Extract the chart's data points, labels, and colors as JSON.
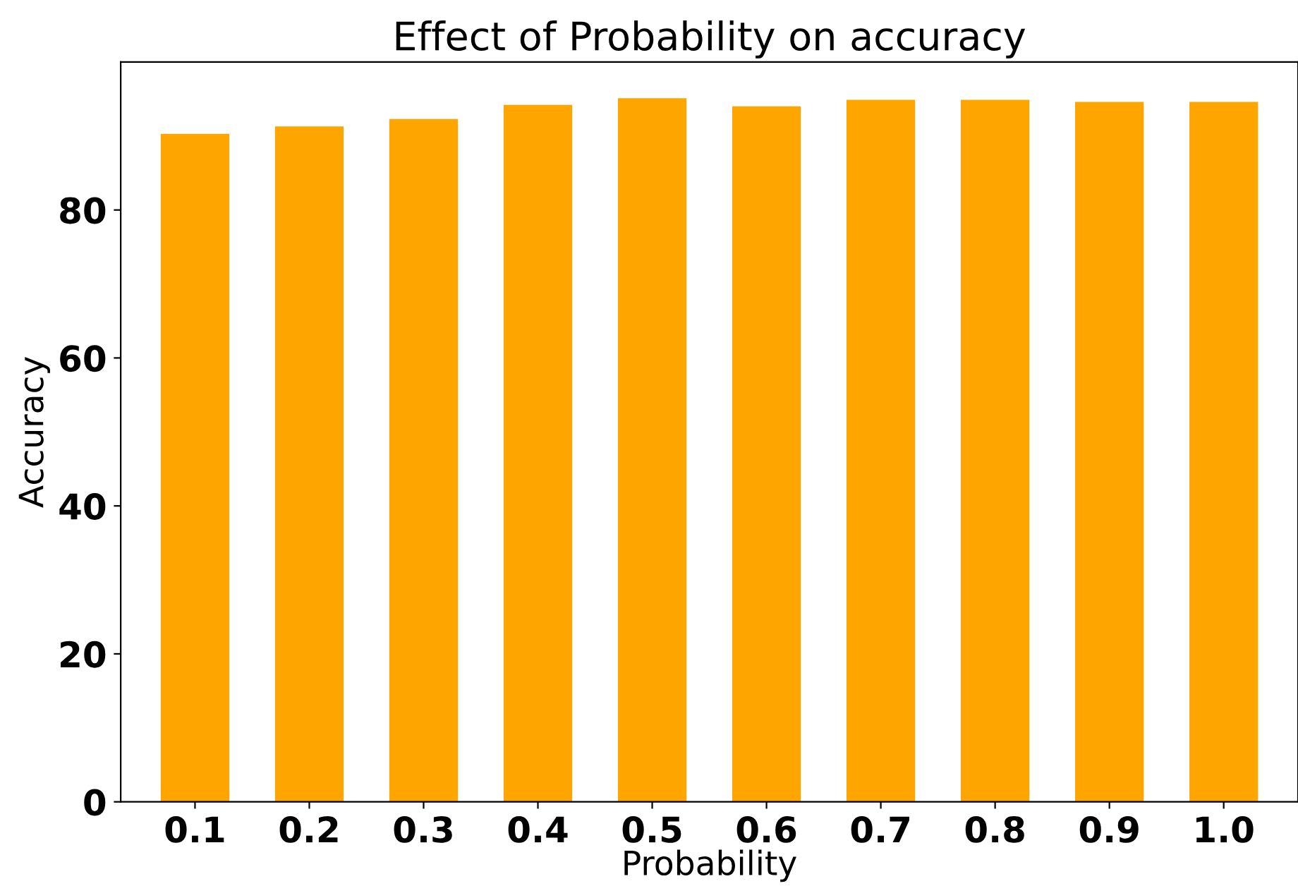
{
  "chart_data": {
    "type": "bar",
    "title": "Effect of Probability on accuracy",
    "xlabel": "Probability",
    "ylabel": "Accuracy",
    "categories": [
      "0.1",
      "0.2",
      "0.3",
      "0.4",
      "0.5",
      "0.6",
      "0.7",
      "0.8",
      "0.9",
      "1.0"
    ],
    "values": [
      90.3,
      91.3,
      92.3,
      94.2,
      95.1,
      94.0,
      94.9,
      94.9,
      94.6,
      94.6
    ],
    "color": "#ffa500",
    "ylim": [
      0,
      100
    ],
    "yticks": [
      0,
      20,
      40,
      60,
      80
    ],
    "grid": false
  }
}
